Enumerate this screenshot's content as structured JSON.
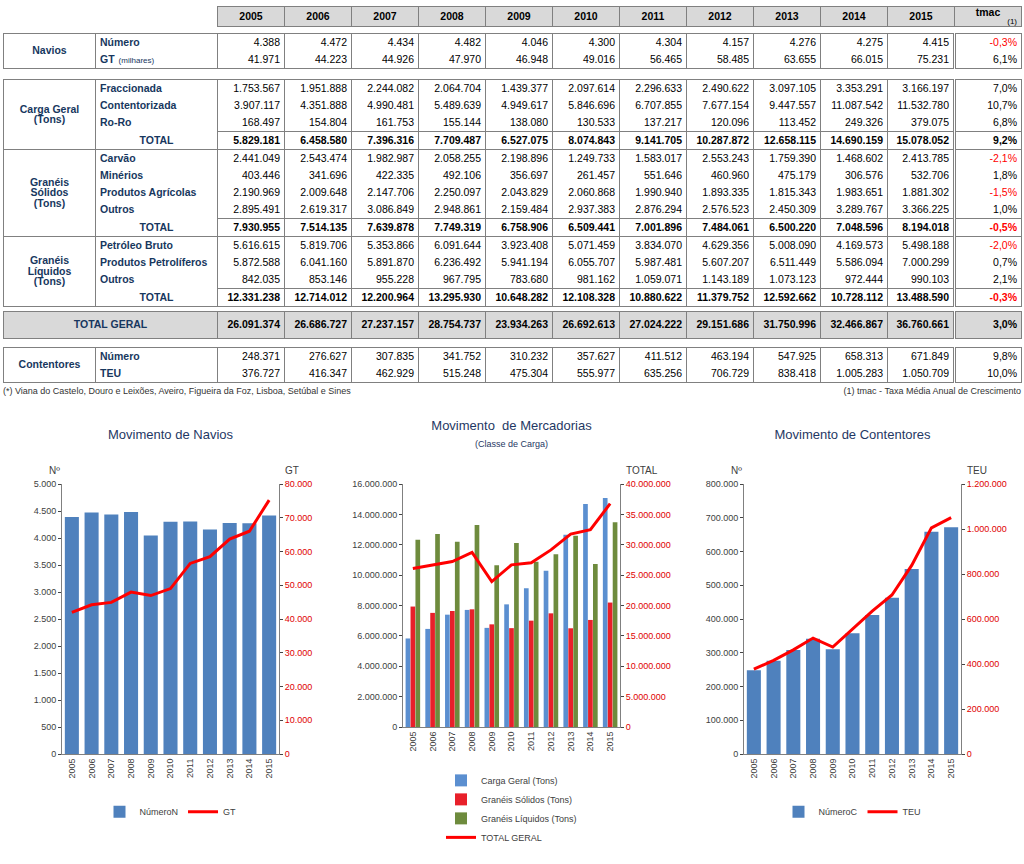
{
  "table": {
    "columns": [
      "2005",
      "2006",
      "2007",
      "2008",
      "2009",
      "2010",
      "2011",
      "2012",
      "2013",
      "2014",
      "2015",
      "tmac"
    ],
    "tmac_note": "(1)",
    "blocks": [
      {
        "groups": [
          {
            "label": [
              "Navios"
            ],
            "rows": [
              {
                "label": "Número",
                "cells": [
                  "4.388",
                  "4.472",
                  "4.434",
                  "4.482",
                  "4.046",
                  "4.300",
                  "4.304",
                  "4.157",
                  "4.276",
                  "4.275",
                  "4.415",
                  "-0,3%"
                ]
              },
              {
                "label": "GT",
                "note": "(milhares)",
                "cells": [
                  "41.971",
                  "44.223",
                  "44.926",
                  "47.970",
                  "46.948",
                  "49.016",
                  "56.465",
                  "58.485",
                  "63.655",
                  "66.015",
                  "75.231",
                  "6,1%"
                ]
              }
            ]
          }
        ]
      },
      {
        "groups": [
          {
            "label": [
              "Carga Geral",
              "(Tons)"
            ],
            "rows": [
              {
                "label": "Fraccionada",
                "cells": [
                  "1.753.567",
                  "1.951.888",
                  "2.244.082",
                  "2.064.704",
                  "1.439.377",
                  "2.097.614",
                  "2.296.633",
                  "2.490.622",
                  "3.097.105",
                  "3.353.291",
                  "3.166.197",
                  "7,0%"
                ]
              },
              {
                "label": "Contentorizada",
                "cells": [
                  "3.907.117",
                  "4.351.888",
                  "4.990.481",
                  "5.489.639",
                  "4.949.617",
                  "5.846.696",
                  "6.707.855",
                  "7.677.154",
                  "9.447.557",
                  "11.087.542",
                  "11.532.780",
                  "10,7%"
                ]
              },
              {
                "label": "Ro-Ro",
                "cells": [
                  "168.497",
                  "154.804",
                  "161.753",
                  "155.144",
                  "138.080",
                  "130.533",
                  "137.217",
                  "120.096",
                  "113.452",
                  "249.326",
                  "379.075",
                  "6,8%"
                ]
              }
            ],
            "total": {
              "label": "TOTAL",
              "cells": [
                "5.829.181",
                "6.458.580",
                "7.396.316",
                "7.709.487",
                "6.527.075",
                "8.074.843",
                "9.141.705",
                "10.287.872",
                "12.658.115",
                "14.690.159",
                "15.078.052",
                "9,2%"
              ]
            }
          },
          {
            "label": [
              "Granéis",
              "Sólidos",
              "(Tons)"
            ],
            "rows": [
              {
                "label": "Carvão",
                "cells": [
                  "2.441.049",
                  "2.543.474",
                  "1.982.987",
                  "2.058.255",
                  "2.198.896",
                  "1.249.733",
                  "1.583.017",
                  "2.553.243",
                  "1.759.390",
                  "1.468.602",
                  "2.413.785",
                  "-2,1%"
                ]
              },
              {
                "label": "Minérios",
                "cells": [
                  "403.446",
                  "341.696",
                  "422.335",
                  "492.106",
                  "356.697",
                  "261.457",
                  "551.646",
                  "460.960",
                  "475.179",
                  "306.576",
                  "532.706",
                  "1,8%"
                ]
              },
              {
                "label": "Produtos Agrícolas",
                "cells": [
                  "2.190.969",
                  "2.009.648",
                  "2.147.706",
                  "2.250.097",
                  "2.043.829",
                  "2.060.868",
                  "1.990.940",
                  "1.893.335",
                  "1.815.343",
                  "1.983.651",
                  "1.881.302",
                  "-1,5%"
                ]
              },
              {
                "label": "Outros",
                "cells": [
                  "2.895.491",
                  "2.619.317",
                  "3.086.849",
                  "2.948.861",
                  "2.159.484",
                  "2.937.383",
                  "2.876.294",
                  "2.576.523",
                  "2.450.309",
                  "3.289.767",
                  "3.366.225",
                  "1,0%"
                ]
              }
            ],
            "total": {
              "label": "TOTAL",
              "cells": [
                "7.930.955",
                "7.514.135",
                "7.639.878",
                "7.749.319",
                "6.758.906",
                "6.509.441",
                "7.001.896",
                "7.484.061",
                "6.500.220",
                "7.048.596",
                "8.194.018",
                "-0,5%"
              ]
            }
          },
          {
            "label": [
              "Granéis",
              "Líquidos",
              "(Tons)"
            ],
            "rows": [
              {
                "label": "Petróleo Bruto",
                "cells": [
                  "5.616.615",
                  "5.819.706",
                  "5.353.866",
                  "6.091.644",
                  "3.923.408",
                  "5.071.459",
                  "3.834.070",
                  "4.629.356",
                  "5.008.090",
                  "4.169.573",
                  "5.498.188",
                  "-2,0%"
                ]
              },
              {
                "label": "Produtos Petrolíferos",
                "cells": [
                  "5.872.588",
                  "6.041.160",
                  "5.891.870",
                  "6.236.492",
                  "5.941.194",
                  "6.055.707",
                  "5.987.481",
                  "5.607.207",
                  "6.511.449",
                  "5.586.094",
                  "7.000.299",
                  "0,7%"
                ]
              },
              {
                "label": "Outros",
                "cells": [
                  "842.035",
                  "853.146",
                  "955.228",
                  "967.795",
                  "783.680",
                  "981.162",
                  "1.059.071",
                  "1.143.189",
                  "1.073.123",
                  "972.444",
                  "990.103",
                  "2,1%"
                ]
              }
            ],
            "total": {
              "label": "TOTAL",
              "cells": [
                "12.331.238",
                "12.714.012",
                "12.200.964",
                "13.295.930",
                "10.648.282",
                "12.108.328",
                "10.880.622",
                "11.379.752",
                "12.592.662",
                "10.728.112",
                "13.488.590",
                "-0,3%"
              ]
            }
          }
        ]
      },
      {
        "grand_total": {
          "label": "TOTAL GERAL",
          "cells": [
            "26.091.374",
            "26.686.727",
            "27.237.157",
            "28.754.737",
            "23.934.263",
            "26.692.613",
            "27.024.222",
            "29.151.686",
            "31.750.996",
            "32.466.867",
            "36.760.661",
            "3,0%"
          ]
        }
      },
      {
        "groups": [
          {
            "label": [
              "Contentores"
            ],
            "rows": [
              {
                "label": "Número",
                "cells": [
                  "248.371",
                  "276.627",
                  "307.835",
                  "341.752",
                  "310.232",
                  "357.627",
                  "411.512",
                  "463.194",
                  "547.925",
                  "658.313",
                  "671.849",
                  "9,8%"
                ]
              },
              {
                "label": "TEU",
                "cells": [
                  "376.727",
                  "416.347",
                  "462.929",
                  "515.248",
                  "475.304",
                  "555.977",
                  "635.256",
                  "706.729",
                  "838.418",
                  "1.005.283",
                  "1.050.709",
                  "10,0%"
                ]
              }
            ]
          }
        ]
      }
    ],
    "footnote_left": "(*) Viana do Castelo, Douro e Leixões, Aveiro, Figueira da Foz, Lisboa, Setúbal e Sines",
    "footnote_right": "(1) tmac - Taxa Média Anual de Crescimento"
  },
  "chart_data": [
    {
      "type": "bar",
      "title": "Movimento de Navios",
      "ylabel": "Nº",
      "y2label": "GT",
      "categories": [
        "2005",
        "2006",
        "2007",
        "2008",
        "2009",
        "2010",
        "2011",
        "2012",
        "2013",
        "2014",
        "2015"
      ],
      "series": [
        {
          "name": "NúmeroN",
          "type": "bar",
          "color": "#4f81bd",
          "values": [
            4388,
            4472,
            4434,
            4482,
            4046,
            4300,
            4304,
            4157,
            4276,
            4275,
            4415
          ]
        },
        {
          "name": "GT",
          "type": "line",
          "axis": "y2",
          "color": "#ff0000",
          "values": [
            41971,
            44223,
            44926,
            47970,
            46948,
            49016,
            56465,
            58485,
            63655,
            66015,
            75231
          ]
        }
      ],
      "ylim": [
        0,
        5000
      ],
      "yticks": [
        0,
        500,
        {
          "value": 1000,
          "label": "1.000"
        },
        {
          "value": 1500,
          "label": "1.500"
        },
        {
          "value": 2000,
          "label": "2.000"
        },
        {
          "value": 2500,
          "label": "2.500"
        },
        {
          "value": 3000,
          "label": "3.000"
        },
        {
          "value": 3500,
          "label": "3.500"
        },
        {
          "value": 4000,
          "label": "4.000"
        },
        {
          "value": 4500,
          "label": "4.500"
        },
        {
          "value": 5000,
          "label": "5.000"
        }
      ],
      "y2lim": [
        0,
        80000
      ],
      "y2ticks": [
        0,
        {
          "value": 10000,
          "label": "10.000"
        },
        {
          "value": 20000,
          "label": "20.000"
        },
        {
          "value": 30000,
          "label": "30.000"
        },
        {
          "value": 40000,
          "label": "40.000"
        },
        {
          "value": 50000,
          "label": "50.000"
        },
        {
          "value": 60000,
          "label": "60.000"
        },
        {
          "value": 70000,
          "label": "70.000"
        },
        {
          "value": 80000,
          "label": "80.000"
        }
      ],
      "grid": false,
      "legend": "bottom"
    },
    {
      "type": "bar",
      "title": "Movimento  de Mercadorias",
      "subtitle": "(Classe de Carga)",
      "y2label": "TOTAL",
      "categories": [
        "2005",
        "2006",
        "2007",
        "2008",
        "2009",
        "2010",
        "2011",
        "2012",
        "2013",
        "2014",
        "2015"
      ],
      "series": [
        {
          "name": "Carga Geral (Tons)",
          "type": "bar",
          "color": "#5b8fd0",
          "values": [
            5829181,
            6458580,
            7396316,
            7709487,
            6527075,
            8074843,
            9141705,
            10287872,
            12658115,
            14690159,
            15078052
          ]
        },
        {
          "name": "Granéis Sólidos (Tons)",
          "type": "bar",
          "color": "#e8202a",
          "values": [
            7930955,
            7514135,
            7639878,
            7749319,
            6758906,
            6509441,
            7001896,
            7484061,
            6500220,
            7048596,
            8194018
          ]
        },
        {
          "name": "Granéis Líquidos (Tons)",
          "type": "bar",
          "color": "#6e8b3d",
          "values": [
            12331238,
            12714012,
            12200964,
            13295930,
            10648282,
            12108328,
            10880622,
            11379752,
            12592662,
            10728112,
            13488590
          ]
        },
        {
          "name": "TOTAL GERAL",
          "type": "line",
          "axis": "y2",
          "color": "#ff0000",
          "values": [
            26091374,
            26686727,
            27237157,
            28754737,
            23934263,
            26692613,
            27024222,
            29151686,
            31750996,
            32466867,
            36760661
          ]
        }
      ],
      "ylim": [
        0,
        16000000
      ],
      "yticks": [
        0,
        {
          "value": 2000000,
          "label": "2.000.000"
        },
        {
          "value": 4000000,
          "label": "4.000.000"
        },
        {
          "value": 6000000,
          "label": "6.000.000"
        },
        {
          "value": 8000000,
          "label": "8.000.000"
        },
        {
          "value": 10000000,
          "label": "10.000.000"
        },
        {
          "value": 12000000,
          "label": "12.000.000"
        },
        {
          "value": 14000000,
          "label": "14.000.000"
        },
        {
          "value": 16000000,
          "label": "16.000.000"
        }
      ],
      "y2lim": [
        0,
        40000000
      ],
      "y2ticks": [
        0,
        {
          "value": 5000000,
          "label": "5.000.000"
        },
        {
          "value": 10000000,
          "label": "10.000.000"
        },
        {
          "value": 15000000,
          "label": "15.000.000"
        },
        {
          "value": 20000000,
          "label": "20.000.000"
        },
        {
          "value": 25000000,
          "label": "25.000.000"
        },
        {
          "value": 30000000,
          "label": "30.000.000"
        },
        {
          "value": 35000000,
          "label": "35.000.000"
        },
        {
          "value": 40000000,
          "label": "40.000.000"
        }
      ],
      "grid": false,
      "legend": "bottom"
    },
    {
      "type": "bar",
      "title": "Movimento de Contentores",
      "ylabel": "Nº",
      "y2label": "TEU",
      "categories": [
        "2005",
        "2006",
        "2007",
        "2008",
        "2009",
        "2010",
        "2011",
        "2012",
        "2013",
        "2014",
        "2015"
      ],
      "series": [
        {
          "name": "NúmeroC",
          "type": "bar",
          "color": "#4f81bd",
          "values": [
            248371,
            276627,
            307835,
            341752,
            310232,
            357627,
            411512,
            463194,
            547925,
            658313,
            671849
          ]
        },
        {
          "name": "TEU",
          "type": "line",
          "axis": "y2",
          "color": "#ff0000",
          "values": [
            376727,
            416347,
            462929,
            515248,
            475304,
            555977,
            635256,
            706729,
            838418,
            1005283,
            1050709
          ]
        }
      ],
      "ylim": [
        0,
        800000
      ],
      "yticks": [
        0,
        {
          "value": 100000,
          "label": "100.000"
        },
        {
          "value": 200000,
          "label": "200.000"
        },
        {
          "value": 300000,
          "label": "300.000"
        },
        {
          "value": 400000,
          "label": "400.000"
        },
        {
          "value": 500000,
          "label": "500.000"
        },
        {
          "value": 600000,
          "label": "600.000"
        },
        {
          "value": 700000,
          "label": "700.000"
        },
        {
          "value": 800000,
          "label": "800.000"
        }
      ],
      "y2lim": [
        0,
        1200000
      ],
      "y2ticks": [
        0,
        {
          "value": 200000,
          "label": "200.000"
        },
        {
          "value": 400000,
          "label": "400.000"
        },
        {
          "value": 600000,
          "label": "600.000"
        },
        {
          "value": 800000,
          "label": "800.000"
        },
        {
          "value": 1000000,
          "label": "1.000.000"
        },
        {
          "value": 1200000,
          "label": "1.200.000"
        }
      ],
      "grid": false,
      "legend": "bottom"
    }
  ]
}
